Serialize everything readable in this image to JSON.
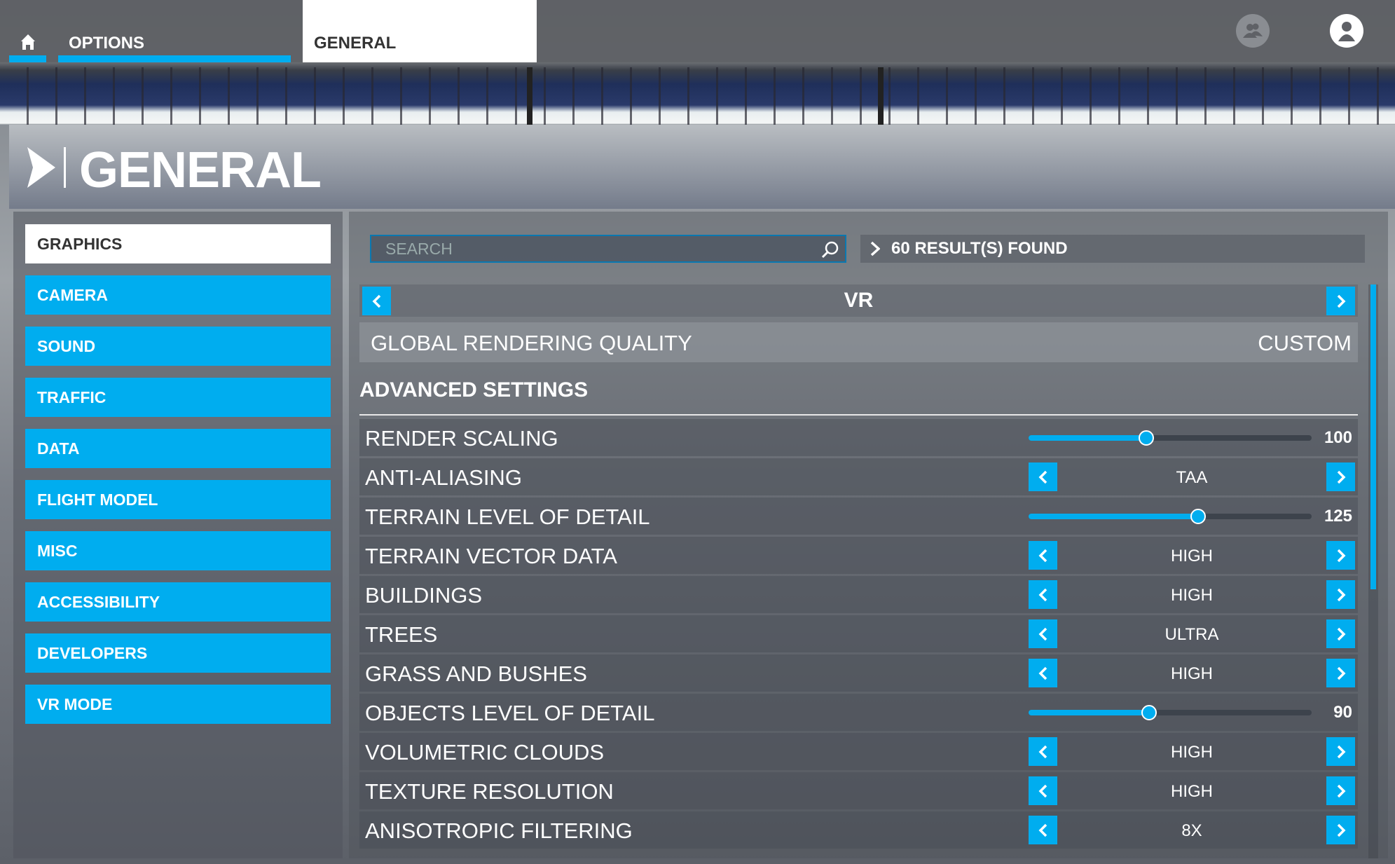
{
  "topbar": {
    "home_icon": "home-icon",
    "tabs": [
      {
        "label": "OPTIONS"
      },
      {
        "label": "GENERAL"
      }
    ],
    "icons": [
      "friends-icon",
      "user-profile-icon"
    ]
  },
  "header": {
    "title": "GENERAL"
  },
  "sidebar": {
    "items": [
      {
        "label": "GRAPHICS",
        "active": true
      },
      {
        "label": "CAMERA"
      },
      {
        "label": "SOUND"
      },
      {
        "label": "TRAFFIC"
      },
      {
        "label": "DATA"
      },
      {
        "label": "FLIGHT MODEL"
      },
      {
        "label": "MISC"
      },
      {
        "label": "ACCESSIBILITY"
      },
      {
        "label": "DEVELOPERS"
      },
      {
        "label": "VR MODE"
      }
    ]
  },
  "search": {
    "placeholder": "SEARCH",
    "value": "",
    "results": "60 RESULT(S) FOUND"
  },
  "mode_selector": {
    "value": "VR"
  },
  "global_quality": {
    "label": "GLOBAL RENDERING QUALITY",
    "value": "CUSTOM"
  },
  "advanced": {
    "title": "ADVANCED SETTINGS",
    "settings": [
      {
        "label": "RENDER SCALING",
        "type": "slider",
        "value": "100",
        "fraction": 0.415
      },
      {
        "label": "ANTI-ALIASING",
        "type": "choice",
        "value": "TAA"
      },
      {
        "label": "TERRAIN LEVEL OF DETAIL",
        "type": "slider",
        "value": "125",
        "fraction": 0.6
      },
      {
        "label": "TERRAIN VECTOR DATA",
        "type": "choice",
        "value": "HIGH"
      },
      {
        "label": "BUILDINGS",
        "type": "choice",
        "value": "HIGH"
      },
      {
        "label": "TREES",
        "type": "choice",
        "value": "ULTRA"
      },
      {
        "label": "GRASS AND BUSHES",
        "type": "choice",
        "value": "HIGH"
      },
      {
        "label": "OBJECTS LEVEL OF DETAIL",
        "type": "slider",
        "value": "90",
        "fraction": 0.425
      },
      {
        "label": "VOLUMETRIC CLOUDS",
        "type": "choice",
        "value": "HIGH"
      },
      {
        "label": "TEXTURE RESOLUTION",
        "type": "choice",
        "value": "HIGH"
      },
      {
        "label": "ANISOTROPIC FILTERING",
        "type": "choice",
        "value": "8X"
      }
    ]
  },
  "colors": {
    "accent": "#00adef"
  }
}
